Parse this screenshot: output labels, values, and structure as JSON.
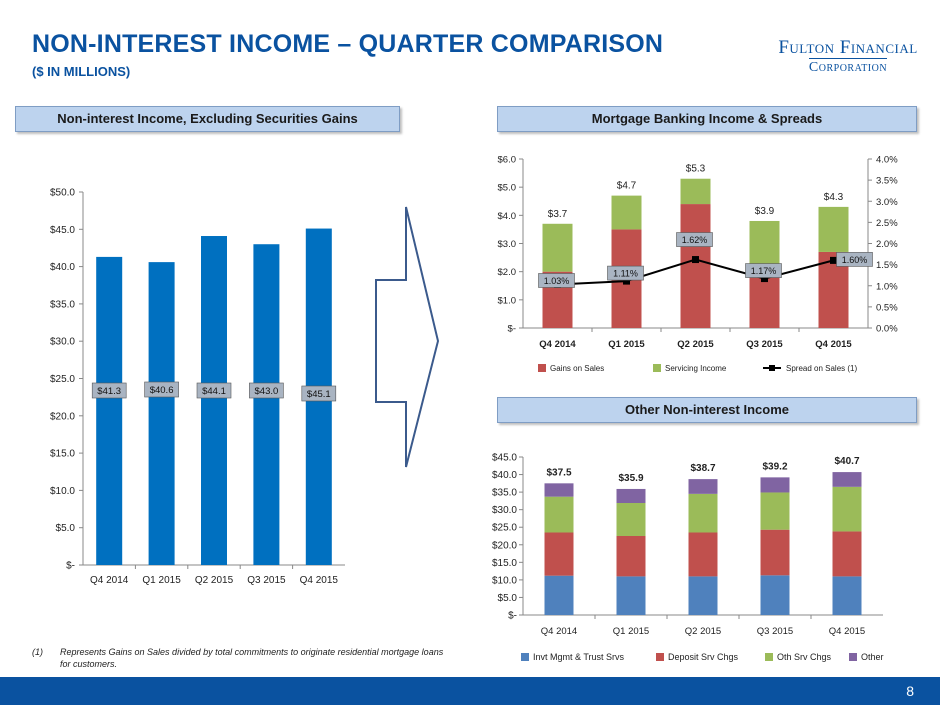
{
  "header": {
    "title": "NON-INTEREST INCOME – QUARTER COMPARISON",
    "subtitle": "($ IN MILLIONS)",
    "logo_line1": "Fulton Financial",
    "logo_line2": "Corporation"
  },
  "panels": {
    "left_header": "Non-interest Income, Excluding Securities Gains",
    "right_top_header": "Mortgage Banking Income & Spreads",
    "right_bottom_header": "Other Non-interest Income"
  },
  "colors": {
    "brand_blue": "#0a52a0",
    "bar_blue": "#0070c0",
    "gains_red": "#c0504d",
    "servicing_green": "#9bbb59",
    "invt_blue": "#4f81bd",
    "other_purple": "#8064a2",
    "arrow_outline": "#3b5a8c"
  },
  "chart_data": [
    {
      "type": "bar",
      "categories": [
        "Q4 2014",
        "Q1 2015",
        "Q2 2015",
        "Q3 2015",
        "Q4 2015"
      ],
      "values": [
        41.3,
        40.6,
        44.1,
        43.0,
        45.1
      ],
      "data_labels": [
        "$41.3",
        "$40.6",
        "$44.1",
        "$43.0",
        "$45.1"
      ],
      "ylim": [
        0,
        50
      ],
      "y_ticks": [
        0,
        5,
        10,
        15,
        20,
        25,
        30,
        35,
        40,
        45,
        50
      ],
      "y_tick_labels": [
        "$-",
        "$5.0",
        "$10.0",
        "$15.0",
        "$20.0",
        "$25.0",
        "$30.0",
        "$35.0",
        "$40.0",
        "$45.0",
        "$50.0"
      ],
      "grid": false
    },
    {
      "type": "bar",
      "stacked": true,
      "categories": [
        "Q4 2014",
        "Q1 2015",
        "Q2 2015",
        "Q3 2015",
        "Q4 2015"
      ],
      "series": [
        {
          "name": "Gains on Sales",
          "values": [
            2.0,
            3.5,
            4.4,
            2.1,
            2.7
          ]
        },
        {
          "name": "Servicing Income",
          "values": [
            1.7,
            1.2,
            0.9,
            1.7,
            1.6
          ]
        }
      ],
      "totals": [
        "$3.7",
        "$4.7",
        "$5.3",
        "$3.9",
        "$4.3"
      ],
      "line_series": {
        "name": "Spread on Sales (1)",
        "values": [
          1.03,
          1.11,
          1.62,
          1.17,
          1.6
        ],
        "labels": [
          "1.03%",
          "1.11%",
          "1.62%",
          "1.17%",
          "1.60%"
        ]
      },
      "ylim": [
        0,
        6
      ],
      "y_tick_labels": [
        "$-",
        "$1.0",
        "$2.0",
        "$3.0",
        "$4.0",
        "$5.0",
        "$6.0"
      ],
      "y2lim": [
        0,
        4
      ],
      "y2_tick_labels": [
        "0.0%",
        "0.5%",
        "1.0%",
        "1.5%",
        "2.0%",
        "2.5%",
        "3.0%",
        "3.5%",
        "4.0%"
      ],
      "legend": "bottom"
    },
    {
      "type": "bar",
      "stacked": true,
      "categories": [
        "Q4 2014",
        "Q1 2015",
        "Q2 2015",
        "Q3 2015",
        "Q4 2015"
      ],
      "series": [
        {
          "name": "Invt Mgmt & Trust Srvs",
          "values": [
            11.2,
            11.0,
            11.0,
            11.3,
            11.0
          ]
        },
        {
          "name": "Deposit Srv Chgs",
          "values": [
            12.3,
            11.5,
            12.5,
            13.0,
            12.8
          ]
        },
        {
          "name": "Oth Srv Chgs",
          "values": [
            10.2,
            9.4,
            11.0,
            10.6,
            12.7
          ]
        },
        {
          "name": "Other",
          "values": [
            3.8,
            4.0,
            4.2,
            4.3,
            4.2
          ]
        }
      ],
      "totals": [
        "$37.5",
        "$35.9",
        "$38.7",
        "$39.2",
        "$40.7"
      ],
      "ylim": [
        0,
        45
      ],
      "y_tick_labels": [
        "$-",
        "$5.0",
        "$10.0",
        "$15.0",
        "$20.0",
        "$25.0",
        "$30.0",
        "$35.0",
        "$40.0",
        "$45.0"
      ],
      "legend": "bottom"
    }
  ],
  "footnote": {
    "marker": "(1)",
    "text": "Represents Gains on Sales divided by total commitments to originate residential mortgage loans for customers."
  },
  "page_number": "8"
}
